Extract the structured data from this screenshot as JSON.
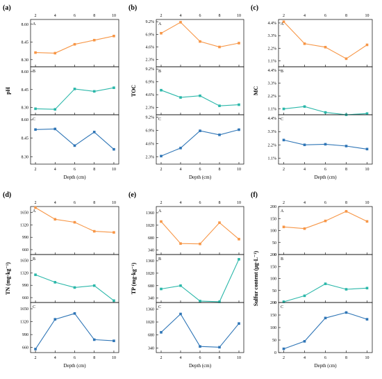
{
  "colors": {
    "A": "#f79646",
    "B": "#2ab7a9",
    "C": "#2e75b6",
    "axis": "#000000"
  },
  "chart_data": [
    {
      "label": "(a)",
      "type": "line",
      "ylabel": "pH",
      "xlabel": "Depth (cm)",
      "x": [
        2,
        4,
        6,
        8,
        10
      ],
      "xticks": [
        "2",
        "4",
        "6",
        "8",
        "10"
      ],
      "panels": [
        {
          "name": "A",
          "yticks": [
            "8.30",
            "8.45",
            "8.60"
          ],
          "yrange": [
            8.24,
            8.64
          ],
          "values": [
            8.36,
            8.355,
            8.43,
            8.465,
            8.5
          ]
        },
        {
          "name": "B",
          "yticks": [
            "8.30",
            "8.45",
            "8.60"
          ],
          "yrange": [
            8.24,
            8.64
          ],
          "values": [
            8.29,
            8.285,
            8.455,
            8.435,
            8.465
          ]
        },
        {
          "name": "C",
          "yticks": [
            "8.30",
            "8.45",
            "8.60"
          ],
          "yrange": [
            8.24,
            8.64
          ],
          "values": [
            8.52,
            8.525,
            8.39,
            8.5,
            8.36
          ]
        }
      ]
    },
    {
      "label": "(b)",
      "type": "line",
      "ylabel": "TOC",
      "xlabel": "Depth (cm)",
      "x": [
        2,
        4,
        6,
        8,
        10
      ],
      "xticks": [
        "2",
        "4",
        "6",
        "8",
        "10"
      ],
      "panels": [
        {
          "name": "A",
          "yticks": [
            "2.3%",
            "4.6%",
            "6.9%",
            "9.2%"
          ],
          "yrange": [
            1.0,
            9.6
          ],
          "values": [
            7.1,
            9.1,
            5.6,
            4.6,
            5.3
          ]
        },
        {
          "name": "B",
          "yticks": [
            "2.3%",
            "4.6%",
            "6.9%",
            "9.2%"
          ],
          "yrange": [
            1.0,
            9.6
          ],
          "values": [
            5.4,
            4.1,
            4.4,
            2.6,
            2.8
          ]
        },
        {
          "name": "C",
          "yticks": [
            "2.3%",
            "4.6%",
            "6.9%",
            "9.2%"
          ],
          "yrange": [
            1.0,
            9.6
          ],
          "values": [
            2.4,
            3.8,
            6.8,
            6.1,
            7.0
          ]
        }
      ]
    },
    {
      "label": "(c)",
      "type": "line",
      "ylabel": "MC",
      "xlabel": "Depth (cm)",
      "x": [
        2,
        4,
        6,
        8,
        10
      ],
      "xticks": [
        "2",
        "4",
        "6",
        "8",
        "10"
      ],
      "panels": [
        {
          "name": "A",
          "yticks": [
            "1.1%",
            "2.2%",
            "3.3%",
            "4.4%"
          ],
          "yrange": [
            0.6,
            4.7
          ],
          "values": [
            4.5,
            2.6,
            2.3,
            1.3,
            2.5
          ]
        },
        {
          "name": "B",
          "yticks": [
            "1.1%",
            "2.2%",
            "3.3%",
            "4.4%"
          ],
          "yrange": [
            0.6,
            4.7
          ],
          "values": [
            1.1,
            1.3,
            0.8,
            0.6,
            0.7
          ]
        },
        {
          "name": "C",
          "yticks": [
            "1.1%",
            "2.2%",
            "3.3%",
            "4.4%"
          ],
          "yrange": [
            0.6,
            4.7
          ],
          "values": [
            2.6,
            2.2,
            2.25,
            2.1,
            1.85
          ]
        }
      ]
    },
    {
      "label": "(d)",
      "type": "line",
      "ylabel": "TN (mg·kg⁻¹)",
      "xlabel": "Depth (cm)",
      "x": [
        2,
        4,
        6,
        8,
        10
      ],
      "xticks": [
        "2",
        "4",
        "6",
        "8",
        "10"
      ],
      "panels": [
        {
          "name": "A",
          "yticks": [
            "660",
            "990",
            "1320",
            "1650"
          ],
          "yrange": [
            530,
            1810
          ],
          "values": [
            1780,
            1470,
            1390,
            1150,
            1120
          ]
        },
        {
          "name": "B",
          "yticks": [
            "660",
            "990",
            "1320",
            "1650"
          ],
          "yrange": [
            530,
            1810
          ],
          "values": [
            1270,
            1070,
            930,
            980,
            580
          ]
        },
        {
          "name": "C",
          "yticks": [
            "660",
            "990",
            "1320",
            "1650"
          ],
          "yrange": [
            530,
            1810
          ],
          "values": [
            620,
            1380,
            1530,
            860,
            830
          ]
        }
      ]
    },
    {
      "label": "(e)",
      "type": "line",
      "ylabel": "TP (mg·kg⁻¹)",
      "xlabel": "Depth (cm)",
      "x": [
        2,
        4,
        6,
        8,
        10
      ],
      "xticks": [
        "2",
        "4",
        "6",
        "8",
        "10"
      ],
      "panels": [
        {
          "name": "A",
          "yticks": [
            "340",
            "680",
            "1020",
            "1360"
          ],
          "yrange": [
            220,
            1530
          ],
          "values": [
            1120,
            520,
            510,
            1090,
            640
          ]
        },
        {
          "name": "B",
          "yticks": [
            "340",
            "680",
            "1020",
            "1360"
          ],
          "yrange": [
            220,
            1530
          ],
          "values": [
            590,
            680,
            260,
            240,
            1400
          ]
        },
        {
          "name": "C",
          "yticks": [
            "340",
            "680",
            "1020",
            "1360"
          ],
          "yrange": [
            220,
            1530
          ],
          "values": [
            750,
            1230,
            380,
            360,
            980
          ]
        }
      ]
    },
    {
      "label": "(f)",
      "type": "line",
      "ylabel": "Sulfur content (μg·L⁻¹)",
      "xlabel": "Depth (cm)",
      "x": [
        2,
        4,
        6,
        8,
        10
      ],
      "xticks": [
        "2",
        "4",
        "6",
        "8",
        "10"
      ],
      "panels": [
        {
          "name": "A",
          "yticks": [
            "0",
            "50",
            "100",
            "150",
            "200"
          ],
          "yrange": [
            0,
            200
          ],
          "values": [
            115,
            108,
            140,
            180,
            138
          ]
        },
        {
          "name": "B",
          "yticks": [
            "0",
            "50",
            "100",
            "150",
            "200"
          ],
          "yrange": [
            0,
            200
          ],
          "values": [
            3,
            28,
            78,
            55,
            60
          ]
        },
        {
          "name": "C",
          "yticks": [
            "0",
            "50",
            "100",
            "150",
            "200"
          ],
          "yrange": [
            0,
            200
          ],
          "values": [
            15,
            45,
            138,
            160,
            133
          ]
        }
      ]
    }
  ]
}
